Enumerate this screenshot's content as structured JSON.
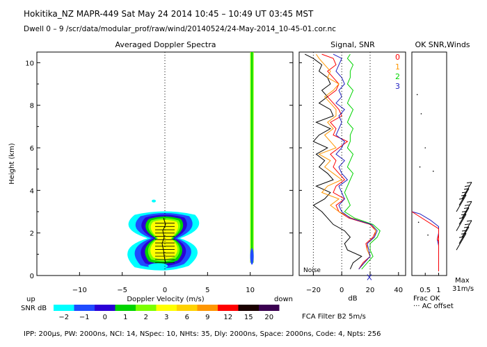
{
  "header": {
    "line1": "Hokitika_NZ  MAPR-449  Sat May 24 2014 10:45 – 10:49 UT 03:45 MST",
    "line2": "Dwell  0 –  9   /scr/data/modular_prof/raw/wind/20140524/24-May-2014_10-45-01.cor.nc"
  },
  "footer": {
    "params": "IPP: 200µs,  PW: 2000ns,  NCI:  14,  NSpec: 10, NHts: 35,  Dly: 2000ns,  Space: 2000ns,  Code: 4,  Npts: 256",
    "fca": "FCA Filter B2   5m/s"
  },
  "snr_scale": {
    "label": "SNR dB",
    "ticks": [
      "−2",
      "−1",
      "0",
      "1",
      "2",
      "3",
      "6",
      "9",
      "12",
      "15",
      "20"
    ],
    "colors": [
      "#00ffff",
      "#1f4bff",
      "#2a00d6",
      "#00d400",
      "#7cff00",
      "#ffff00",
      "#ffd200",
      "#ff9600",
      "#ff0000",
      "#1a0000",
      "#3a0050"
    ]
  },
  "chart_data": [
    {
      "type": "heatmap",
      "title": "Averaged Doppler Spectra",
      "xlabel": "Doppler Velocity (m/s)",
      "ylabel": "Height (km)",
      "x_ticks": [
        "−10",
        "−5",
        "0",
        "5",
        "10"
      ],
      "y_ticks": [
        "0",
        "2",
        "4",
        "6",
        "8",
        "10"
      ],
      "xlim": [
        -15,
        15
      ],
      "ylim": [
        0,
        10.5
      ],
      "side_labels": {
        "left": "up",
        "right": "down"
      },
      "echo_region": {
        "height_range_km": [
          0.5,
          2.8
        ],
        "velocity_range_ms": [
          -5,
          4
        ],
        "peak_snr_db": 3
      },
      "spike_velocity_ms": 10.2
    },
    {
      "type": "line",
      "title": "Signal, SNR",
      "xlabel": "dB",
      "x_ticks": [
        "−20",
        "0",
        "20",
        "40"
      ],
      "xlim": [
        -30,
        45
      ],
      "ylim": [
        0,
        10.5
      ],
      "noise_label": "Noise",
      "series_labels": [
        "0",
        "1",
        "2",
        "3"
      ],
      "series_colors": [
        "#ff0000",
        "#ff9600",
        "#00d400",
        "#2020c0"
      ],
      "height_km": [
        0.3,
        0.6,
        0.9,
        1.2,
        1.5,
        1.8,
        2.1,
        2.4,
        2.7,
        3.0,
        3.3,
        3.6,
        3.9,
        4.2,
        4.5,
        4.8,
        5.1,
        5.4,
        5.7,
        6.0,
        6.3,
        6.6,
        6.9,
        7.2,
        7.5,
        7.8,
        8.1,
        8.4,
        8.7,
        9.0,
        9.3,
        9.6,
        9.9,
        10.2,
        10.4
      ],
      "signal_db": [
        6,
        8,
        14,
        4,
        2,
        6,
        2,
        -6,
        -10,
        -14,
        -20,
        -12,
        -8,
        -18,
        -6,
        -10,
        -16,
        -12,
        -18,
        -10,
        -20,
        -16,
        -8,
        -18,
        -6,
        -8,
        -16,
        -10,
        -14,
        -8,
        -10,
        -16,
        -14,
        -20,
        -26
      ],
      "snr_db": {
        "0": [
          12,
          15,
          20,
          18,
          17,
          22,
          24,
          20,
          5,
          -2,
          -4,
          2,
          -6,
          -4,
          2,
          -2,
          -6,
          -4,
          -8,
          -2,
          4,
          -6,
          -4,
          -8,
          0,
          -2,
          -6,
          -10,
          -4,
          -2,
          -6,
          -10,
          -4,
          -6,
          -14
        ],
        "1": [
          12,
          16,
          20,
          18,
          18,
          23,
          24,
          21,
          7,
          -2,
          -8,
          -2,
          -14,
          -10,
          0,
          -6,
          -12,
          -8,
          -16,
          -4,
          -8,
          -12,
          -6,
          -10,
          -4,
          -4,
          -8,
          -12,
          -6,
          -2,
          -10,
          -8,
          -12,
          -16,
          -18
        ],
        "2": [
          14,
          18,
          22,
          20,
          20,
          25,
          27,
          22,
          9,
          2,
          6,
          4,
          2,
          4,
          6,
          8,
          4,
          6,
          8,
          4,
          6,
          6,
          8,
          4,
          6,
          8,
          4,
          6,
          8,
          4,
          6,
          6,
          8,
          4,
          6
        ],
        "3": [
          12,
          16,
          20,
          19,
          18,
          23,
          25,
          21,
          6,
          0,
          -2,
          2,
          0,
          -2,
          4,
          0,
          -2,
          2,
          -4,
          0,
          2,
          -4,
          -2,
          0,
          -2,
          2,
          -4,
          0,
          -2,
          2,
          0,
          -4,
          -2,
          0,
          -6
        ]
      }
    },
    {
      "type": "line",
      "title": "OK SNR,Winds",
      "x_ticks": [
        "0.5",
        "1"
      ],
      "xlim": [
        0,
        1.3
      ],
      "ylim": [
        0,
        10.5
      ],
      "frac_ok_height_km": [
        0.2,
        0.5,
        0.8,
        1.1,
        1.4,
        1.7,
        2.0,
        2.3,
        2.6,
        2.9,
        3.0
      ],
      "frac_ok_values": [
        1.0,
        1.0,
        1.0,
        1.0,
        1.0,
        0.95,
        1.0,
        1.0,
        0.7,
        0.3,
        0.0
      ],
      "wind_barb_heights_km": [
        1.2,
        1.5,
        1.8,
        2.1,
        2.4,
        2.7,
        3.0,
        3.3,
        3.6
      ],
      "max_label": "Max",
      "max_value": "31m/s",
      "legend": [
        "Frac OK",
        "··· AC offset"
      ]
    }
  ]
}
